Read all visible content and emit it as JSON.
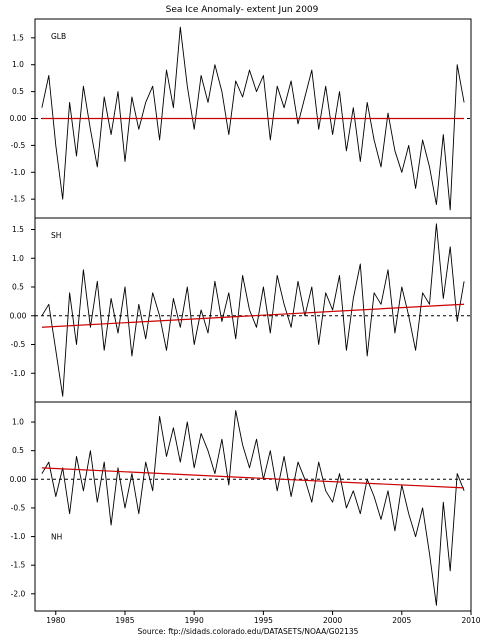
{
  "title": "Sea Ice Anomaly- extent Jun 2009",
  "source": "Source:  ftp://sidads.colorado.edu/DATASETS/NOAA/G02135",
  "colors": {
    "anomaly": "#000000",
    "trend": "#cc0000",
    "zero": "#000000",
    "frame": "#000000"
  },
  "chart_data": [
    {
      "type": "line",
      "panel_label": "GLB",
      "xlim": [
        1978.5,
        2010.0
      ],
      "ylim": [
        -1.85,
        1.85
      ],
      "x_ticks": [
        1980,
        1985,
        1990,
        1995,
        2000,
        2005,
        2010
      ],
      "x_tick_labels": [
        "1980",
        "1985",
        "1990",
        "1995",
        "2000",
        "2005",
        "2010"
      ],
      "y_ticks": [
        1.5,
        1.0,
        0.5,
        0.0,
        -0.5,
        -1.0,
        -1.5
      ],
      "y_tick_labels": [
        "1.5",
        "1.0",
        "0.5",
        "0.00",
        "-0.5",
        "-1.0",
        "-1.5"
      ],
      "zero_line": "dashed",
      "anomaly": {
        "x": [
          1979.0,
          1979.5,
          1980.0,
          1980.5,
          1981.0,
          1981.5,
          1982.0,
          1982.5,
          1983.0,
          1983.5,
          1984.0,
          1984.5,
          1985.0,
          1985.5,
          1986.0,
          1986.5,
          1987.0,
          1987.5,
          1988.0,
          1988.5,
          1989.0,
          1989.5,
          1990.0,
          1990.5,
          1991.0,
          1991.5,
          1992.0,
          1992.5,
          1993.0,
          1993.5,
          1994.0,
          1994.5,
          1995.0,
          1995.5,
          1996.0,
          1996.5,
          1997.0,
          1997.5,
          1998.0,
          1998.5,
          1999.0,
          1999.5,
          2000.0,
          2000.5,
          2001.0,
          2001.5,
          2002.0,
          2002.5,
          2003.0,
          2003.5,
          2004.0,
          2004.5,
          2005.0,
          2005.5,
          2006.0,
          2006.5,
          2007.0,
          2007.5,
          2008.0,
          2008.5,
          2009.0,
          2009.5
        ],
        "y": [
          0.2,
          0.8,
          -0.5,
          -1.5,
          0.3,
          -0.7,
          0.6,
          -0.2,
          -0.9,
          0.4,
          -0.3,
          0.5,
          -0.8,
          0.4,
          -0.2,
          0.3,
          0.6,
          -0.4,
          0.9,
          0.2,
          1.7,
          0.6,
          -0.2,
          0.8,
          0.3,
          1.0,
          0.5,
          -0.3,
          0.7,
          0.4,
          0.9,
          0.5,
          0.8,
          -0.4,
          0.6,
          0.2,
          0.7,
          -0.1,
          0.4,
          0.9,
          -0.2,
          0.6,
          -0.3,
          0.5,
          -0.6,
          0.2,
          -0.8,
          0.3,
          -0.4,
          -0.9,
          0.1,
          -0.6,
          -1.0,
          -0.5,
          -1.3,
          -0.4,
          -0.9,
          -1.6,
          -0.3,
          -1.7,
          1.0,
          0.3
        ]
      },
      "trend": {
        "x": [
          1979.0,
          2009.5
        ],
        "y": [
          0.0,
          0.0
        ]
      }
    },
    {
      "type": "line",
      "panel_label": "SH",
      "xlim": [
        1978.5,
        2010.0
      ],
      "ylim": [
        -1.5,
        1.7
      ],
      "x_ticks": [
        1980,
        1985,
        1990,
        1995,
        2000,
        2005,
        2010
      ],
      "x_tick_labels": [
        "1980",
        "1985",
        "1990",
        "1995",
        "2000",
        "2005",
        "2010"
      ],
      "y_ticks": [
        1.5,
        1.0,
        0.5,
        0.0,
        -0.5,
        -1.0
      ],
      "y_tick_labels": [
        "1.5",
        "1.0",
        "0.5",
        "0.00",
        "-0.5",
        "-1.0"
      ],
      "zero_line": "dashed",
      "anomaly": {
        "x": [
          1979.0,
          1979.5,
          1980.0,
          1980.5,
          1981.0,
          1981.5,
          1982.0,
          1982.5,
          1983.0,
          1983.5,
          1984.0,
          1984.5,
          1985.0,
          1985.5,
          1986.0,
          1986.5,
          1987.0,
          1987.5,
          1988.0,
          1988.5,
          1989.0,
          1989.5,
          1990.0,
          1990.5,
          1991.0,
          1991.5,
          1992.0,
          1992.5,
          1993.0,
          1993.5,
          1994.0,
          1994.5,
          1995.0,
          1995.5,
          1996.0,
          1996.5,
          1997.0,
          1997.5,
          1998.0,
          1998.5,
          1999.0,
          1999.5,
          2000.0,
          2000.5,
          2001.0,
          2001.5,
          2002.0,
          2002.5,
          2003.0,
          2003.5,
          2004.0,
          2004.5,
          2005.0,
          2005.5,
          2006.0,
          2006.5,
          2007.0,
          2007.5,
          2008.0,
          2008.5,
          2009.0,
          2009.5
        ],
        "y": [
          0.0,
          0.2,
          -0.6,
          -1.4,
          0.4,
          -0.5,
          0.8,
          -0.2,
          0.6,
          -0.6,
          0.3,
          -0.3,
          0.5,
          -0.7,
          0.2,
          -0.4,
          0.4,
          0.0,
          -0.6,
          0.3,
          -0.2,
          0.5,
          -0.5,
          0.1,
          -0.3,
          0.6,
          -0.1,
          0.4,
          -0.4,
          0.7,
          0.1,
          -0.2,
          0.5,
          -0.3,
          0.7,
          0.2,
          -0.2,
          0.6,
          0.0,
          0.5,
          -0.5,
          0.4,
          0.1,
          0.7,
          -0.6,
          0.3,
          0.9,
          -0.7,
          0.4,
          0.2,
          0.8,
          -0.3,
          0.5,
          0.0,
          -0.6,
          0.4,
          0.2,
          1.6,
          0.3,
          1.2,
          -0.1,
          0.6
        ]
      },
      "trend": {
        "x": [
          1979.0,
          2009.5
        ],
        "y": [
          -0.2,
          0.2
        ]
      }
    },
    {
      "type": "line",
      "panel_label": "NH",
      "xlim": [
        1978.5,
        2010.0
      ],
      "ylim": [
        -2.3,
        1.35
      ],
      "x_ticks": [
        1980,
        1985,
        1990,
        1995,
        2000,
        2005,
        2010
      ],
      "x_tick_labels": [
        "1980",
        "1985",
        "1990",
        "1995",
        "2000",
        "2005",
        "2010"
      ],
      "y_ticks": [
        1.0,
        0.5,
        0.0,
        -0.5,
        -1.0,
        -1.5,
        -2.0
      ],
      "y_tick_labels": [
        "1.0",
        "0.5",
        "0.00",
        "-0.5",
        "-1.0",
        "-1.5",
        "-2.0"
      ],
      "zero_line": "dashed",
      "anomaly": {
        "x": [
          1979.0,
          1979.5,
          1980.0,
          1980.5,
          1981.0,
          1981.5,
          1982.0,
          1982.5,
          1983.0,
          1983.5,
          1984.0,
          1984.5,
          1985.0,
          1985.5,
          1986.0,
          1986.5,
          1987.0,
          1987.5,
          1988.0,
          1988.5,
          1989.0,
          1989.5,
          1990.0,
          1990.5,
          1991.0,
          1991.5,
          1992.0,
          1992.5,
          1993.0,
          1993.5,
          1994.0,
          1994.5,
          1995.0,
          1995.5,
          1996.0,
          1996.5,
          1997.0,
          1997.5,
          1998.0,
          1998.5,
          1999.0,
          1999.5,
          2000.0,
          2000.5,
          2001.0,
          2001.5,
          2002.0,
          2002.5,
          2003.0,
          2003.5,
          2004.0,
          2004.5,
          2005.0,
          2005.5,
          2006.0,
          2006.5,
          2007.0,
          2007.5,
          2008.0,
          2008.5,
          2009.0,
          2009.5
        ],
        "y": [
          0.1,
          0.3,
          -0.3,
          0.2,
          -0.6,
          0.4,
          -0.2,
          0.5,
          -0.4,
          0.3,
          -0.8,
          0.2,
          -0.5,
          0.1,
          -0.6,
          0.3,
          -0.2,
          1.1,
          0.4,
          0.9,
          0.3,
          1.0,
          0.2,
          0.8,
          0.5,
          0.1,
          0.7,
          -0.1,
          1.2,
          0.6,
          0.2,
          0.7,
          0.0,
          0.5,
          -0.2,
          0.4,
          -0.3,
          0.3,
          0.0,
          -0.4,
          0.3,
          -0.2,
          -0.4,
          0.1,
          -0.5,
          -0.2,
          -0.6,
          0.0,
          -0.3,
          -0.7,
          -0.2,
          -0.9,
          -0.1,
          -0.6,
          -1.0,
          -0.5,
          -1.3,
          -2.2,
          -0.4,
          -1.6,
          0.1,
          -0.2
        ]
      },
      "trend": {
        "x": [
          1979.0,
          2009.5
        ],
        "y": [
          0.2,
          -0.15
        ]
      }
    }
  ]
}
